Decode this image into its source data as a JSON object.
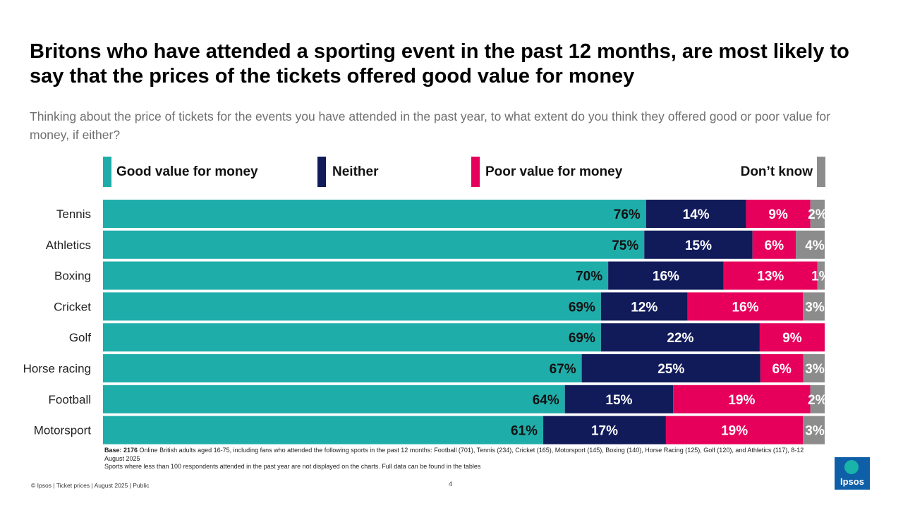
{
  "title": "Britons who have attended a sporting event in the past 12 months, are most likely to say that the prices of the tickets offered good value for money",
  "subtitle": "Thinking about the price of tickets for the events you have attended in the past year, to what extent do you think they offered good or poor value for money, if either?",
  "legend": {
    "good": "Good value for money",
    "neither": "Neither",
    "poor": "Poor value for money",
    "dontknow": "Don’t know"
  },
  "colors": {
    "good": "#1fadaa",
    "neither": "#111b5a",
    "poor": "#e6005c",
    "dontknow": "#8c8c8c"
  },
  "chart_data": {
    "type": "bar",
    "orientation": "horizontal",
    "stacked": true,
    "unit": "%",
    "xlim": [
      0,
      100
    ],
    "categories": [
      "Tennis",
      "Athletics",
      "Boxing",
      "Cricket",
      "Golf",
      "Horse racing",
      "Football",
      "Motorsport"
    ],
    "series": [
      {
        "name": "Good value for money",
        "key": "good",
        "values": [
          76,
          75,
          70,
          69,
          69,
          67,
          64,
          61
        ]
      },
      {
        "name": "Neither",
        "key": "neither",
        "values": [
          14,
          15,
          16,
          12,
          22,
          25,
          15,
          17
        ]
      },
      {
        "name": "Poor value for money",
        "key": "poor",
        "values": [
          9,
          6,
          13,
          16,
          9,
          6,
          19,
          19
        ]
      },
      {
        "name": "Don’t know",
        "key": "dontknow",
        "values": [
          2,
          4,
          1,
          3,
          0,
          3,
          2,
          3
        ]
      }
    ],
    "labels": [
      [
        "76%",
        "14%",
        "9%",
        "2%"
      ],
      [
        "75%",
        "15%",
        "6%",
        "4%"
      ],
      [
        "70%",
        "16%",
        "13%",
        "1%"
      ],
      [
        "69%",
        "12%",
        "16%",
        "3%"
      ],
      [
        "69%",
        "22%",
        "9%",
        ""
      ],
      [
        "67%",
        "25%",
        "6%",
        "3%"
      ],
      [
        "64%",
        "15%",
        "19%",
        "2%"
      ],
      [
        "61%",
        "17%",
        "19%",
        "3%"
      ]
    ]
  },
  "base": {
    "label": "Base: 2176",
    "text": " Online British adults aged 16-75, including fans who attended the following sports in the past 12 months: Football (701), Tennis (234), Cricket (165), Motorsport (145), Boxing (140), Horse Racing (125), Golf (120), and Athletics (117), 8-12 August 2025",
    "note": "Sports where less than 100 respondents attended in the past year are not displayed on the charts. Full data can be found in the tables"
  },
  "footer": {
    "left": "© Ipsos | Ticket prices | August 2025 | Public",
    "page": "4"
  },
  "logo": {
    "text": "Ipsos"
  }
}
